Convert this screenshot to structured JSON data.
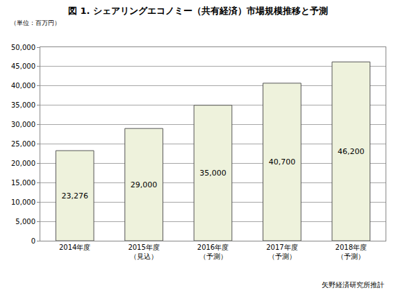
{
  "chart_data": {
    "type": "bar",
    "title": "図 1. シェアリングエコノミー（共有経済）市場規模推移と予測",
    "categories": [
      "2014年度",
      "2015年度\n（見込）",
      "2016年度\n（予測）",
      "2017年度\n（予測）",
      "2018年度\n（予測）"
    ],
    "values": [
      23276,
      29000,
      35000,
      40700,
      46200
    ],
    "value_labels": [
      "23,276",
      "29,000",
      "35,000",
      "40,700",
      "46,200"
    ],
    "data_labels": true,
    "color": "#eef2dc",
    "ylim": [
      0,
      50000
    ],
    "yticks": [
      0,
      {
        "value": 5000,
        "label": "5,000"
      },
      {
        "value": 10000,
        "label": "10,000"
      },
      {
        "value": 15000,
        "label": "15,000"
      },
      {
        "value": 20000,
        "label": "20,000"
      },
      {
        "value": 25000,
        "label": "25,000"
      },
      {
        "value": 30000,
        "label": "30,000"
      },
      {
        "value": 35000,
        "label": "35,000"
      },
      {
        "value": 40000,
        "label": "40,000"
      },
      {
        "value": 45000,
        "label": "45,000"
      },
      {
        "value": 50000,
        "label": "50,000"
      }
    ],
    "grid": true,
    "annotations": [
      "（単位：百万円）",
      "矢野経済研究所推計"
    ]
  }
}
